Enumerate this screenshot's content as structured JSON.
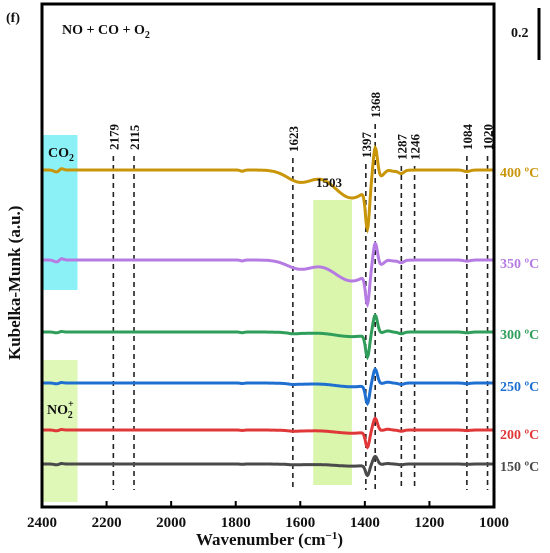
{
  "panel_label": "(f)",
  "chart_data": {
    "type": "line",
    "title_parts": {
      "main": "NO + CO + O",
      "sub": "2"
    },
    "xlabel": "Wavenumber (cm",
    "xlabel_sup": "−1",
    "xlabel_end": ")",
    "ylabel": "Kubelka-Munk (a.u.)",
    "xlim": [
      2400,
      1000
    ],
    "x_ticks": [
      2400,
      2200,
      2000,
      1800,
      1600,
      1400,
      1200,
      1000
    ],
    "scale_bar_label": "0.2",
    "peak_lines": [
      2179,
      2115,
      1623,
      1397,
      1368,
      1287,
      1246,
      1084,
      1020
    ],
    "peak_labels": [
      "2179",
      "2115",
      "1623",
      "1397",
      "1368",
      "1287",
      "1246",
      "1084",
      "1020"
    ],
    "band_label_1503": "1503",
    "highlight_bands": [
      {
        "label": "CO",
        "label_sub": "2",
        "x_range": [
          2400,
          2290
        ],
        "color": "#7ff0f5"
      },
      {
        "label": "NO",
        "label_sup": "+",
        "label_sub": "2",
        "x_range": [
          2400,
          2290
        ],
        "color": "#dcf7b0"
      },
      {
        "label": "",
        "x_range": [
          1560,
          1440
        ],
        "color": "#d6f5a3"
      }
    ],
    "series": [
      {
        "name": "400 ºC",
        "color": "#c9960a"
      },
      {
        "name": "350 ºC",
        "color": "#b57be3"
      },
      {
        "name": "300 ºC",
        "color": "#2f9e5a"
      },
      {
        "name": "250 ºC",
        "color": "#1f6fd1"
      },
      {
        "name": "200 ºC",
        "color": "#e03838"
      },
      {
        "name": "150 ºC",
        "color": "#4a4a4a"
      }
    ]
  }
}
